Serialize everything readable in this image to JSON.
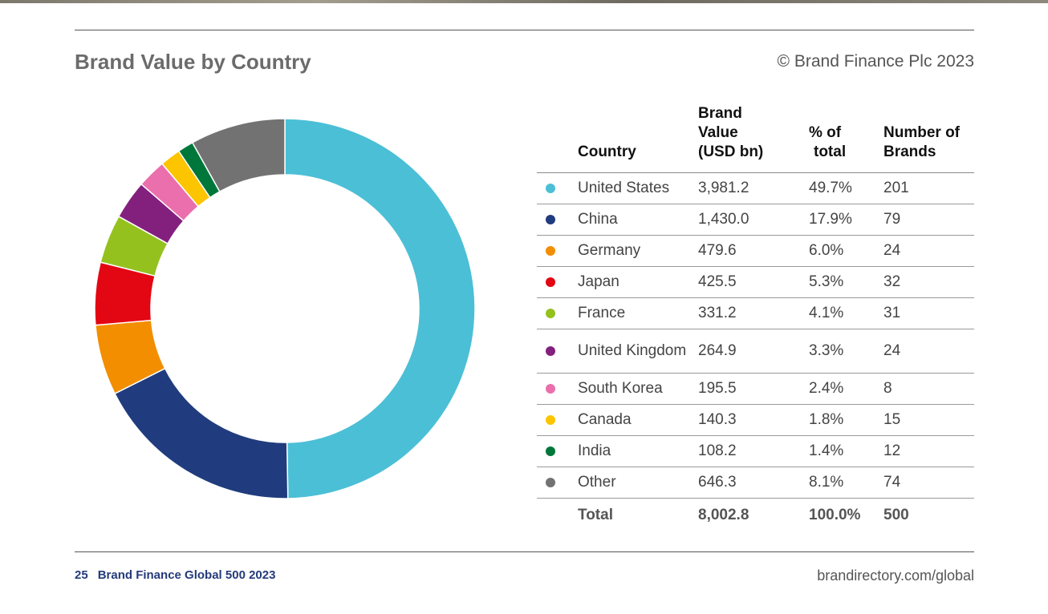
{
  "header": {
    "title": "Brand Value by Country",
    "copyright": "© Brand Finance Plc 2023"
  },
  "table": {
    "headers": {
      "country": "Country",
      "value_line1": "Brand",
      "value_line2": "Value",
      "value_line3": "(USD bn)",
      "pct_line1": "% of",
      "pct_line2": "total",
      "num_line1": "Number of",
      "num_line2": "Brands"
    },
    "rows": [
      {
        "country": "United States",
        "value": "3,981.2",
        "pct": "49.7%",
        "brands": "201",
        "color": "#4bbfd6"
      },
      {
        "country": "China",
        "value": "1,430.0",
        "pct": "17.9%",
        "brands": "79",
        "color": "#203c7e"
      },
      {
        "country": "Germany",
        "value": "479.6",
        "pct": "6.0%",
        "brands": "24",
        "color": "#f28e00"
      },
      {
        "country": "Japan",
        "value": "425.5",
        "pct": "5.3%",
        "brands": "32",
        "color": "#e30613"
      },
      {
        "country": "France",
        "value": "331.2",
        "pct": "4.1%",
        "brands": "31",
        "color": "#95c11f"
      },
      {
        "country": "United Kingdom",
        "value": "264.9",
        "pct": "3.3%",
        "brands": "24",
        "color": "#83207e"
      },
      {
        "country": "South Korea",
        "value": "195.5",
        "pct": "2.4%",
        "brands": "8",
        "color": "#ea6fac"
      },
      {
        "country": "Canada",
        "value": "140.3",
        "pct": "1.8%",
        "brands": "15",
        "color": "#fcc500"
      },
      {
        "country": "India",
        "value": "108.2",
        "pct": "1.4%",
        "brands": "12",
        "color": "#00773a"
      },
      {
        "country": "Other",
        "value": "646.3",
        "pct": "8.1%",
        "brands": "74",
        "color": "#727272"
      }
    ],
    "total": {
      "label": "Total",
      "value": "8,002.8",
      "pct": "100.0%",
      "brands": "500"
    }
  },
  "chart_data": {
    "type": "pie",
    "style": "donut",
    "categories": [
      "United States",
      "China",
      "Germany",
      "Japan",
      "France",
      "United Kingdom",
      "South Korea",
      "Canada",
      "India",
      "Other"
    ],
    "values": [
      3981.2,
      1430.0,
      479.6,
      425.5,
      331.2,
      264.9,
      195.5,
      140.3,
      108.2,
      646.3
    ],
    "colors": [
      "#4bbfd6",
      "#203c7e",
      "#f28e00",
      "#e30613",
      "#95c11f",
      "#83207e",
      "#ea6fac",
      "#fcc500",
      "#00773a",
      "#727272"
    ],
    "start": "top",
    "direction": "clockwise",
    "legend": "right"
  },
  "footer": {
    "page": "25",
    "publication": "Brand Finance Global 500 2023",
    "url": "brandirectory.com/global"
  }
}
